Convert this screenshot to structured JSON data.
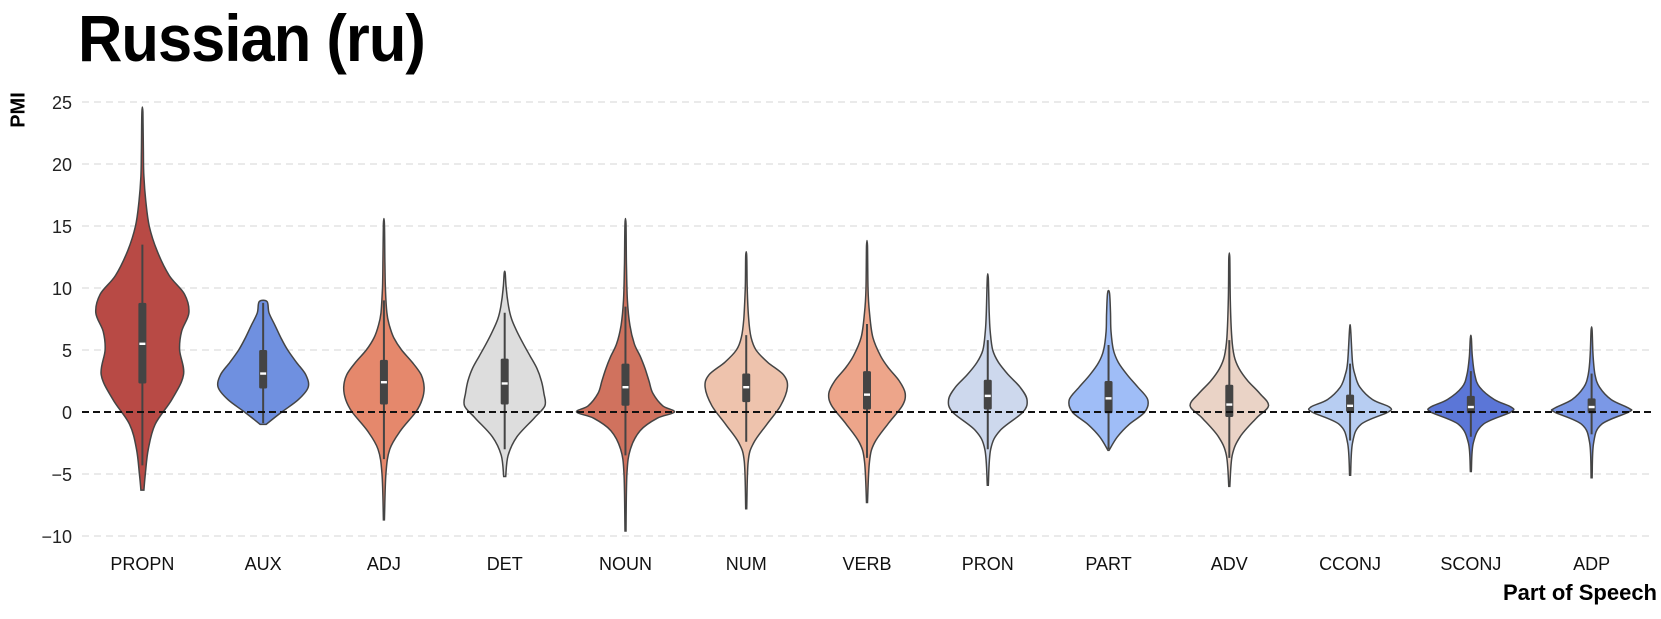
{
  "chart_data": {
    "type": "violin",
    "title": "Russian (ru)",
    "xlabel": "Part of Speech",
    "ylabel": "PMI",
    "ylim": [
      -11,
      26.5
    ],
    "yticks": [
      -10,
      -5,
      0,
      5,
      10,
      15,
      20,
      25
    ],
    "grid": true,
    "reference_line_y": 0,
    "categories": [
      "PROPN",
      "AUX",
      "ADJ",
      "DET",
      "NOUN",
      "NUM",
      "VERB",
      "PRON",
      "PART",
      "ADV",
      "CCONJ",
      "SCONJ",
      "ADP"
    ],
    "violins": [
      {
        "category": "PROPN",
        "color": "#b84a45",
        "min": -6.3,
        "max": 24.2,
        "q1": 2.3,
        "median": 5.5,
        "q3": 8.8,
        "whisker_low": -4.3,
        "whisker_high": 13.5,
        "profile": [
          [
            -6.3,
            0.03
          ],
          [
            -5,
            0.06
          ],
          [
            -3,
            0.12
          ],
          [
            -1,
            0.26
          ],
          [
            1,
            0.6
          ],
          [
            3,
            0.84
          ],
          [
            5,
            0.76
          ],
          [
            6.5,
            0.8
          ],
          [
            8,
            0.95
          ],
          [
            9.5,
            0.86
          ],
          [
            11,
            0.55
          ],
          [
            13,
            0.3
          ],
          [
            15,
            0.14
          ],
          [
            17,
            0.07
          ],
          [
            19,
            0.03
          ],
          [
            21,
            0.02
          ],
          [
            24.2,
            0.01
          ]
        ]
      },
      {
        "category": "AUX",
        "color": "#6f90e0",
        "min": -1.0,
        "max": 8.9,
        "q1": 1.9,
        "median": 3.1,
        "q3": 5.0,
        "whisker_low": -0.9,
        "whisker_high": 8.8,
        "profile": [
          [
            -1,
            0.06
          ],
          [
            0,
            0.38
          ],
          [
            1,
            0.72
          ],
          [
            2,
            0.92
          ],
          [
            3,
            0.87
          ],
          [
            4,
            0.68
          ],
          [
            5,
            0.5
          ],
          [
            6,
            0.36
          ],
          [
            7,
            0.24
          ],
          [
            8,
            0.12
          ],
          [
            8.9,
            0.08
          ]
        ]
      },
      {
        "category": "ADJ",
        "color": "#e5886c",
        "min": -8.7,
        "max": 15.2,
        "q1": 0.6,
        "median": 2.4,
        "q3": 4.2,
        "whisker_low": -3.8,
        "whisker_high": 9.0,
        "profile": [
          [
            -8.7,
            0.01
          ],
          [
            -5,
            0.04
          ],
          [
            -3,
            0.12
          ],
          [
            -1.5,
            0.34
          ],
          [
            0,
            0.65
          ],
          [
            1,
            0.78
          ],
          [
            2,
            0.82
          ],
          [
            3,
            0.76
          ],
          [
            4,
            0.58
          ],
          [
            5,
            0.36
          ],
          [
            6,
            0.2
          ],
          [
            7,
            0.11
          ],
          [
            8,
            0.06
          ],
          [
            10,
            0.03
          ],
          [
            12,
            0.02
          ],
          [
            15.2,
            0.01
          ]
        ]
      },
      {
        "category": "DET",
        "color": "#dddddd",
        "min": -5.2,
        "max": 11.2,
        "q1": 0.6,
        "median": 2.3,
        "q3": 4.3,
        "whisker_low": -3.0,
        "whisker_high": 8.0,
        "profile": [
          [
            -5.2,
            0.02
          ],
          [
            -3.5,
            0.07
          ],
          [
            -2,
            0.25
          ],
          [
            -0.5,
            0.6
          ],
          [
            0.5,
            0.82
          ],
          [
            1.5,
            0.8
          ],
          [
            2.5,
            0.75
          ],
          [
            3.5,
            0.66
          ],
          [
            4.5,
            0.52
          ],
          [
            5.5,
            0.38
          ],
          [
            6.5,
            0.25
          ],
          [
            7.5,
            0.14
          ],
          [
            8.5,
            0.08
          ],
          [
            10,
            0.03
          ],
          [
            11.2,
            0.01
          ]
        ]
      },
      {
        "category": "NOUN",
        "color": "#d0725e",
        "min": -9.6,
        "max": 15.2,
        "q1": 0.5,
        "median": 2.0,
        "q3": 3.9,
        "whisker_low": -3.5,
        "whisker_high": 8.5,
        "profile": [
          [
            -9.6,
            0.01
          ],
          [
            -5,
            0.03
          ],
          [
            -3,
            0.1
          ],
          [
            -1.5,
            0.3
          ],
          [
            -0.5,
            0.65
          ],
          [
            0,
            1.0
          ],
          [
            0.5,
            0.76
          ],
          [
            1.5,
            0.56
          ],
          [
            2.5,
            0.48
          ],
          [
            3.5,
            0.4
          ],
          [
            4.5,
            0.3
          ],
          [
            5.5,
            0.18
          ],
          [
            7,
            0.09
          ],
          [
            9,
            0.04
          ],
          [
            12,
            0.02
          ],
          [
            15.2,
            0.01
          ]
        ]
      },
      {
        "category": "NUM",
        "color": "#eec3ad",
        "min": -7.8,
        "max": 12.6,
        "q1": 0.8,
        "median": 2.0,
        "q3": 3.1,
        "whisker_low": -2.4,
        "whisker_high": 6.2,
        "profile": [
          [
            -7.8,
            0.01
          ],
          [
            -4,
            0.04
          ],
          [
            -2.5,
            0.15
          ],
          [
            -1,
            0.42
          ],
          [
            0.5,
            0.7
          ],
          [
            2,
            0.84
          ],
          [
            3,
            0.76
          ],
          [
            4,
            0.44
          ],
          [
            5,
            0.2
          ],
          [
            6,
            0.1
          ],
          [
            7.5,
            0.05
          ],
          [
            10,
            0.02
          ],
          [
            12.6,
            0.01
          ]
        ]
      },
      {
        "category": "VERB",
        "color": "#eda58a",
        "min": -7.3,
        "max": 13.4,
        "q1": 0.2,
        "median": 1.4,
        "q3": 3.3,
        "whisker_low": -3.7,
        "whisker_high": 7.1,
        "profile": [
          [
            -7.3,
            0.01
          ],
          [
            -4,
            0.05
          ],
          [
            -2.5,
            0.15
          ],
          [
            -1,
            0.42
          ],
          [
            0.5,
            0.72
          ],
          [
            1.5,
            0.78
          ],
          [
            2.5,
            0.66
          ],
          [
            3.5,
            0.45
          ],
          [
            4.5,
            0.28
          ],
          [
            6,
            0.12
          ],
          [
            8,
            0.05
          ],
          [
            10,
            0.02
          ],
          [
            13.4,
            0.01
          ]
        ]
      },
      {
        "category": "PRON",
        "color": "#cdd8ed",
        "min": -5.9,
        "max": 10.8,
        "q1": 0.2,
        "median": 1.3,
        "q3": 2.6,
        "whisker_low": -3.0,
        "whisker_high": 5.8,
        "profile": [
          [
            -5.9,
            0.01
          ],
          [
            -3,
            0.06
          ],
          [
            -1.5,
            0.25
          ],
          [
            0,
            0.72
          ],
          [
            1,
            0.8
          ],
          [
            2,
            0.66
          ],
          [
            3,
            0.42
          ],
          [
            4,
            0.22
          ],
          [
            5,
            0.1
          ],
          [
            6.5,
            0.05
          ],
          [
            8,
            0.03
          ],
          [
            10.8,
            0.01
          ]
        ]
      },
      {
        "category": "PART",
        "color": "#9fbdf7",
        "min": -3.1,
        "max": 9.6,
        "q1": -0.1,
        "median": 1.1,
        "q3": 2.5,
        "whisker_low": -3.0,
        "whisker_high": 5.4,
        "profile": [
          [
            -3.1,
            0.01
          ],
          [
            -2,
            0.18
          ],
          [
            -1,
            0.42
          ],
          [
            0,
            0.74
          ],
          [
            1,
            0.8
          ],
          [
            2,
            0.6
          ],
          [
            3,
            0.38
          ],
          [
            4,
            0.2
          ],
          [
            5,
            0.1
          ],
          [
            6.5,
            0.05
          ],
          [
            8,
            0.04
          ],
          [
            9.6,
            0.02
          ]
        ]
      },
      {
        "category": "ADV",
        "color": "#ead3c6",
        "min": -6.0,
        "max": 12.4,
        "q1": -0.4,
        "median": 0.6,
        "q3": 2.2,
        "whisker_low": -3.7,
        "whisker_high": 5.8,
        "profile": [
          [
            -6,
            0.01
          ],
          [
            -3.5,
            0.06
          ],
          [
            -2,
            0.22
          ],
          [
            -0.5,
            0.55
          ],
          [
            0.5,
            0.8
          ],
          [
            1.5,
            0.62
          ],
          [
            2.5,
            0.38
          ],
          [
            3.5,
            0.2
          ],
          [
            4.5,
            0.1
          ],
          [
            6,
            0.05
          ],
          [
            9,
            0.02
          ],
          [
            12.4,
            0.01
          ]
        ]
      },
      {
        "category": "CCONJ",
        "color": "#b7cdf2",
        "min": -5.1,
        "max": 6.7,
        "q1": 0.0,
        "median": 0.5,
        "q3": 1.4,
        "whisker_low": -2.3,
        "whisker_high": 3.9,
        "profile": [
          [
            -5.1,
            0.01
          ],
          [
            -2.5,
            0.05
          ],
          [
            -1,
            0.22
          ],
          [
            0,
            0.78
          ],
          [
            0.4,
            0.8
          ],
          [
            1,
            0.46
          ],
          [
            2,
            0.2
          ],
          [
            3,
            0.1
          ],
          [
            4,
            0.05
          ],
          [
            6.7,
            0.01
          ]
        ]
      },
      {
        "category": "SCONJ",
        "color": "#5b76d7",
        "min": -4.8,
        "max": 6.0,
        "q1": -0.1,
        "median": 0.4,
        "q3": 1.3,
        "whisker_low": -2.0,
        "whisker_high": 3.3,
        "profile": [
          [
            -4.8,
            0.01
          ],
          [
            -2.5,
            0.05
          ],
          [
            -1,
            0.25
          ],
          [
            0,
            0.82
          ],
          [
            0.4,
            0.82
          ],
          [
            1,
            0.48
          ],
          [
            2,
            0.18
          ],
          [
            3,
            0.08
          ],
          [
            4.5,
            0.03
          ],
          [
            6,
            0.01
          ]
        ]
      },
      {
        "category": "ADP",
        "color": "#7b98e6",
        "min": -5.3,
        "max": 6.6,
        "q1": -0.1,
        "median": 0.4,
        "q3": 1.1,
        "whisker_low": -1.8,
        "whisker_high": 3.1,
        "profile": [
          [
            -5.3,
            0.01
          ],
          [
            -2.5,
            0.04
          ],
          [
            -1,
            0.2
          ],
          [
            0,
            0.76
          ],
          [
            0.3,
            0.76
          ],
          [
            1,
            0.4
          ],
          [
            2,
            0.16
          ],
          [
            3,
            0.07
          ],
          [
            4.5,
            0.03
          ],
          [
            6.6,
            0.01
          ]
        ]
      }
    ]
  }
}
